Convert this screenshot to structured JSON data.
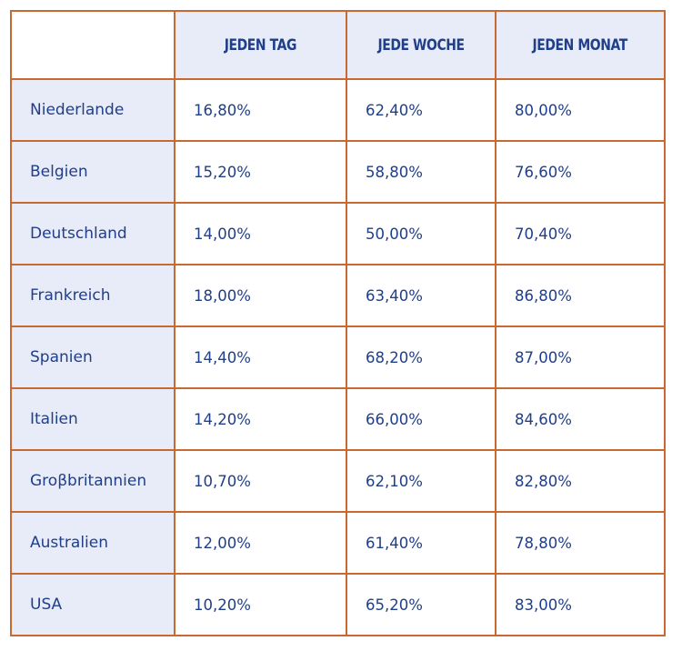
{
  "chart_data": {
    "type": "table",
    "columns": [
      "",
      "JEDEN TAG",
      "JEDE WOCHE",
      "JEDEN MONAT"
    ],
    "rows": [
      {
        "country": "Niederlande",
        "values": [
          "16,80%",
          "62,40%",
          "80,00%"
        ]
      },
      {
        "country": "Belgien",
        "values": [
          "15,20%",
          "58,80%",
          "76,60%"
        ]
      },
      {
        "country": "Deutschland",
        "values": [
          "14,00%",
          "50,00%",
          "70,40%"
        ]
      },
      {
        "country": "Frankreich",
        "values": [
          "18,00%",
          "63,40%",
          "86,80%"
        ]
      },
      {
        "country": "Spanien",
        "values": [
          "14,40%",
          "68,20%",
          "87,00%"
        ]
      },
      {
        "country": "Italien",
        "values": [
          "14,20%",
          "66,00%",
          "84,60%"
        ]
      },
      {
        "country": "Groβbritannien",
        "values": [
          "10,70%",
          "62,10%",
          "82,80%"
        ]
      },
      {
        "country": "Australien",
        "values": [
          "12,00%",
          "61,40%",
          "78,80%"
        ]
      },
      {
        "country": "USA",
        "values": [
          "10,20%",
          "65,20%",
          "83,00%"
        ]
      }
    ]
  },
  "colors": {
    "border": "#c8692f",
    "text": "#1f3f8a",
    "header_fill": "#e8ebf8",
    "cell_fill": "#ffffff"
  }
}
